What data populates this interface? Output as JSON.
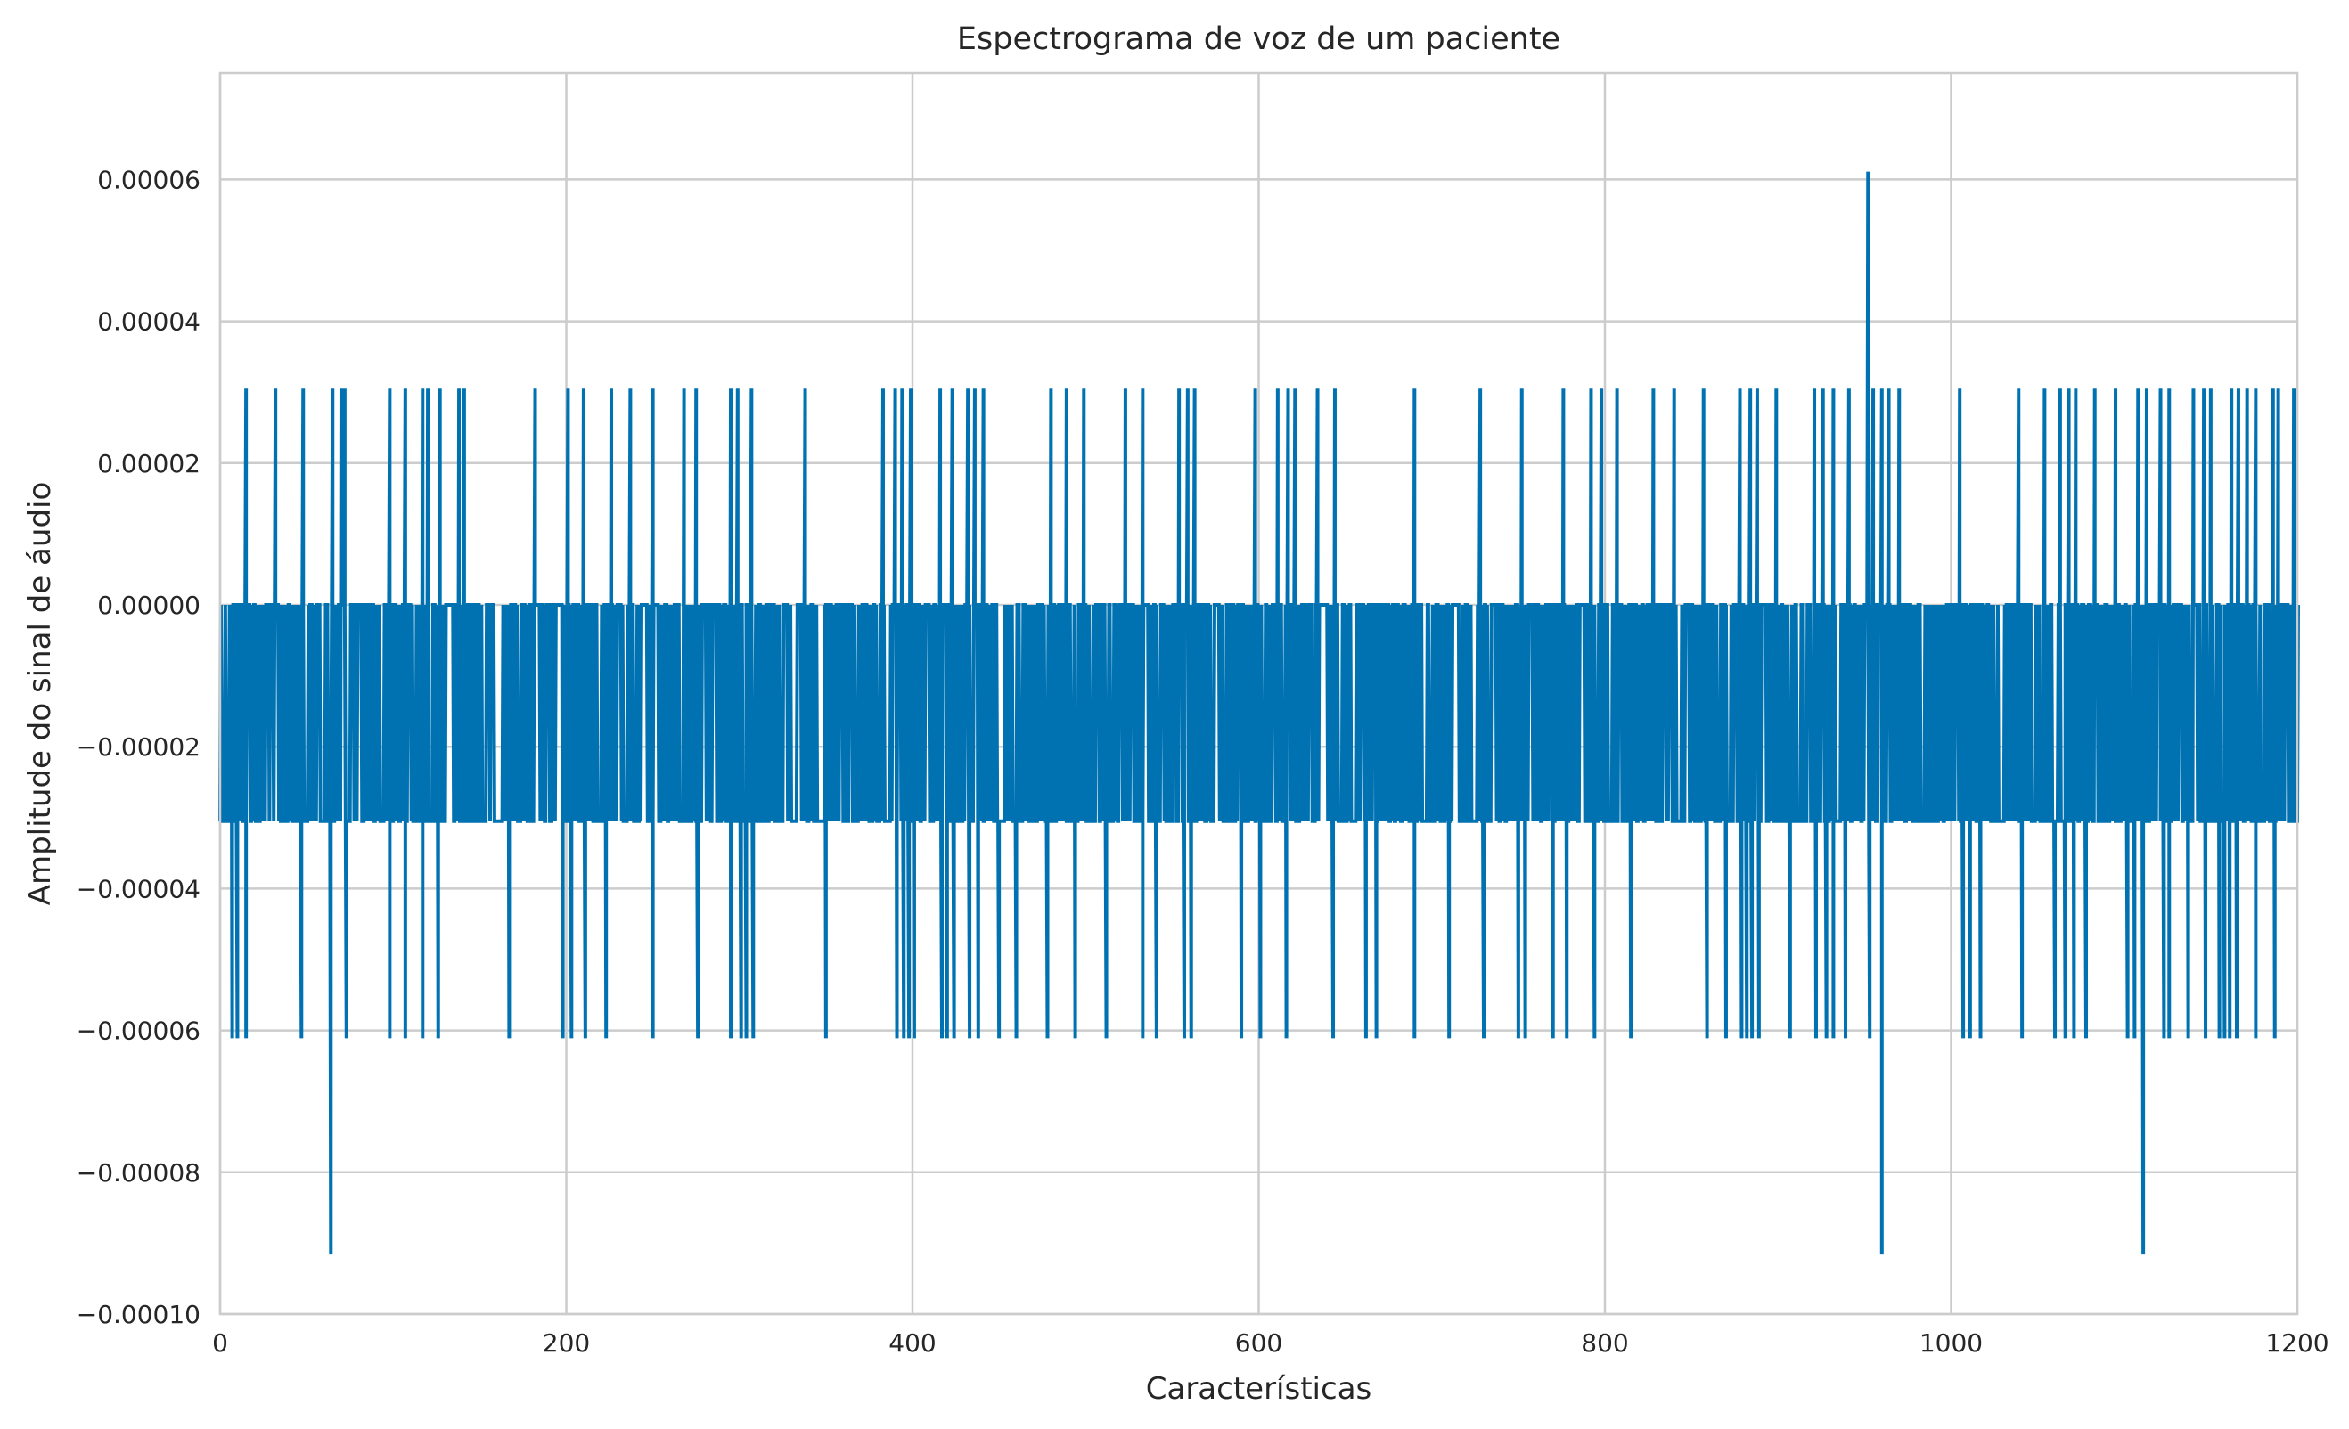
{
  "chart_data": {
    "type": "line",
    "title": "Espectrograma de voz de um paciente",
    "xlabel": "Características",
    "ylabel": "Amplitude do sinal de áudio",
    "xlim": [
      0,
      1200
    ],
    "ylim": [
      -0.0001,
      7.5e-05
    ],
    "x_ticks": [
      0,
      200,
      400,
      600,
      800,
      1000,
      1200
    ],
    "x_tick_labels": [
      "0",
      "200",
      "400",
      "600",
      "800",
      "1000",
      "1200"
    ],
    "y_ticks": [
      -0.0001,
      -8e-05,
      -6e-05,
      -4e-05,
      -2e-05,
      0.0,
      2e-05,
      4e-05,
      6e-05
    ],
    "y_tick_labels": [
      "−0.00010",
      "−0.00008",
      "−0.00006",
      "−0.00004",
      "−0.00002",
      "0.00000",
      "0.00002",
      "0.00004",
      "0.00006"
    ],
    "grid": true,
    "legend": "none",
    "line_color": "#0072b2",
    "grid_color": "#cccccc",
    "quantization_levels": [
      -9.16e-05,
      -6.11e-05,
      -3.05e-05,
      0.0,
      3.05e-05,
      6.11e-05
    ],
    "series": [
      {
        "x_start": 0,
        "x_end": 1200,
        "baseline_range": [
          -3.05e-05,
          0.0
        ],
        "positive_spikes": [
          {
            "x": 15,
            "y": 3.05e-05
          },
          {
            "x": 32,
            "y": 3.05e-05
          },
          {
            "x": 48,
            "y": 3.05e-05
          },
          {
            "x": 65,
            "y": 3.05e-05
          },
          {
            "x": 70,
            "y": 3.05e-05
          },
          {
            "x": 72,
            "y": 3.05e-05
          },
          {
            "x": 98,
            "y": 3.05e-05
          },
          {
            "x": 107,
            "y": 3.05e-05
          },
          {
            "x": 117,
            "y": 3.05e-05
          },
          {
            "x": 120,
            "y": 3.05e-05
          },
          {
            "x": 127,
            "y": 3.05e-05
          },
          {
            "x": 138,
            "y": 3.05e-05
          },
          {
            "x": 141,
            "y": 3.05e-05
          },
          {
            "x": 182,
            "y": 3.05e-05
          },
          {
            "x": 201,
            "y": 3.05e-05
          },
          {
            "x": 210,
            "y": 3.05e-05
          },
          {
            "x": 226,
            "y": 3.05e-05
          },
          {
            "x": 237,
            "y": 3.05e-05
          },
          {
            "x": 250,
            "y": 3.05e-05
          },
          {
            "x": 268,
            "y": 3.05e-05
          },
          {
            "x": 275,
            "y": 3.05e-05
          },
          {
            "x": 295,
            "y": 3.05e-05
          },
          {
            "x": 299,
            "y": 3.05e-05
          },
          {
            "x": 307,
            "y": 3.05e-05
          },
          {
            "x": 338,
            "y": 3.05e-05
          },
          {
            "x": 383,
            "y": 3.05e-05
          },
          {
            "x": 390,
            "y": 3.05e-05
          },
          {
            "x": 394,
            "y": 3.05e-05
          },
          {
            "x": 399,
            "y": 3.05e-05
          },
          {
            "x": 416,
            "y": 3.05e-05
          },
          {
            "x": 423,
            "y": 3.05e-05
          },
          {
            "x": 432,
            "y": 3.05e-05
          },
          {
            "x": 436,
            "y": 3.05e-05
          },
          {
            "x": 441,
            "y": 3.05e-05
          },
          {
            "x": 480,
            "y": 3.05e-05
          },
          {
            "x": 489,
            "y": 3.05e-05
          },
          {
            "x": 499,
            "y": 3.05e-05
          },
          {
            "x": 523,
            "y": 3.05e-05
          },
          {
            "x": 533,
            "y": 3.05e-05
          },
          {
            "x": 554,
            "y": 3.05e-05
          },
          {
            "x": 559,
            "y": 3.05e-05
          },
          {
            "x": 563,
            "y": 3.05e-05
          },
          {
            "x": 598,
            "y": 3.05e-05
          },
          {
            "x": 611,
            "y": 3.05e-05
          },
          {
            "x": 617,
            "y": 3.05e-05
          },
          {
            "x": 621,
            "y": 3.05e-05
          },
          {
            "x": 634,
            "y": 3.05e-05
          },
          {
            "x": 644,
            "y": 3.05e-05
          },
          {
            "x": 690,
            "y": 3.05e-05
          },
          {
            "x": 728,
            "y": 3.05e-05
          },
          {
            "x": 752,
            "y": 3.05e-05
          },
          {
            "x": 776,
            "y": 3.05e-05
          },
          {
            "x": 792,
            "y": 3.05e-05
          },
          {
            "x": 798,
            "y": 3.05e-05
          },
          {
            "x": 807,
            "y": 3.05e-05
          },
          {
            "x": 828,
            "y": 3.05e-05
          },
          {
            "x": 840,
            "y": 3.05e-05
          },
          {
            "x": 857,
            "y": 3.05e-05
          },
          {
            "x": 878,
            "y": 3.05e-05
          },
          {
            "x": 884,
            "y": 3.05e-05
          },
          {
            "x": 888,
            "y": 3.05e-05
          },
          {
            "x": 899,
            "y": 3.05e-05
          },
          {
            "x": 921,
            "y": 3.05e-05
          },
          {
            "x": 926,
            "y": 3.05e-05
          },
          {
            "x": 932,
            "y": 3.05e-05
          },
          {
            "x": 941,
            "y": 3.05e-05
          },
          {
            "x": 952,
            "y": 6.11e-05
          },
          {
            "x": 955,
            "y": 3.05e-05
          },
          {
            "x": 960,
            "y": 3.05e-05
          },
          {
            "x": 964,
            "y": 3.05e-05
          },
          {
            "x": 970,
            "y": 3.05e-05
          },
          {
            "x": 1005,
            "y": 3.05e-05
          },
          {
            "x": 1039,
            "y": 3.05e-05
          },
          {
            "x": 1054,
            "y": 3.05e-05
          },
          {
            "x": 1063,
            "y": 3.05e-05
          },
          {
            "x": 1068,
            "y": 3.05e-05
          },
          {
            "x": 1072,
            "y": 3.05e-05
          },
          {
            "x": 1083,
            "y": 3.05e-05
          },
          {
            "x": 1095,
            "y": 3.05e-05
          },
          {
            "x": 1108,
            "y": 3.05e-05
          },
          {
            "x": 1113,
            "y": 3.05e-05
          },
          {
            "x": 1121,
            "y": 3.05e-05
          },
          {
            "x": 1126,
            "y": 3.05e-05
          },
          {
            "x": 1140,
            "y": 3.05e-05
          },
          {
            "x": 1146,
            "y": 3.05e-05
          },
          {
            "x": 1150,
            "y": 3.05e-05
          },
          {
            "x": 1162,
            "y": 3.05e-05
          },
          {
            "x": 1166,
            "y": 3.05e-05
          },
          {
            "x": 1171,
            "y": 3.05e-05
          },
          {
            "x": 1176,
            "y": 3.05e-05
          },
          {
            "x": 1186,
            "y": 3.05e-05
          },
          {
            "x": 1189,
            "y": 3.05e-05
          },
          {
            "x": 1198,
            "y": 3.05e-05
          }
        ],
        "negative_spikes": [
          {
            "x": 7,
            "y": -6.11e-05
          },
          {
            "x": 10,
            "y": -6.11e-05
          },
          {
            "x": 15,
            "y": -6.11e-05
          },
          {
            "x": 47,
            "y": -6.11e-05
          },
          {
            "x": 64,
            "y": -9.16e-05
          },
          {
            "x": 73,
            "y": -6.11e-05
          },
          {
            "x": 98,
            "y": -6.11e-05
          },
          {
            "x": 107,
            "y": -6.11e-05
          },
          {
            "x": 117,
            "y": -6.11e-05
          },
          {
            "x": 126,
            "y": -6.11e-05
          },
          {
            "x": 167,
            "y": -6.11e-05
          },
          {
            "x": 198,
            "y": -6.11e-05
          },
          {
            "x": 203,
            "y": -6.11e-05
          },
          {
            "x": 211,
            "y": -6.11e-05
          },
          {
            "x": 223,
            "y": -6.11e-05
          },
          {
            "x": 250,
            "y": -6.11e-05
          },
          {
            "x": 276,
            "y": -6.11e-05
          },
          {
            "x": 295,
            "y": -6.11e-05
          },
          {
            "x": 301,
            "y": -6.11e-05
          },
          {
            "x": 304,
            "y": -6.11e-05
          },
          {
            "x": 308,
            "y": -6.11e-05
          },
          {
            "x": 350,
            "y": -6.11e-05
          },
          {
            "x": 391,
            "y": -6.11e-05
          },
          {
            "x": 395,
            "y": -6.11e-05
          },
          {
            "x": 398,
            "y": -6.11e-05
          },
          {
            "x": 401,
            "y": -6.11e-05
          },
          {
            "x": 417,
            "y": -6.11e-05
          },
          {
            "x": 420,
            "y": -6.11e-05
          },
          {
            "x": 424,
            "y": -6.11e-05
          },
          {
            "x": 433,
            "y": -6.11e-05
          },
          {
            "x": 438,
            "y": -6.11e-05
          },
          {
            "x": 450,
            "y": -6.11e-05
          },
          {
            "x": 460,
            "y": -6.11e-05
          },
          {
            "x": 478,
            "y": -6.11e-05
          },
          {
            "x": 494,
            "y": -6.11e-05
          },
          {
            "x": 512,
            "y": -6.11e-05
          },
          {
            "x": 533,
            "y": -6.11e-05
          },
          {
            "x": 541,
            "y": -6.11e-05
          },
          {
            "x": 557,
            "y": -6.11e-05
          },
          {
            "x": 561,
            "y": -6.11e-05
          },
          {
            "x": 590,
            "y": -6.11e-05
          },
          {
            "x": 601,
            "y": -6.11e-05
          },
          {
            "x": 616,
            "y": -6.11e-05
          },
          {
            "x": 643,
            "y": -6.11e-05
          },
          {
            "x": 662,
            "y": -6.11e-05
          },
          {
            "x": 668,
            "y": -6.11e-05
          },
          {
            "x": 690,
            "y": -6.11e-05
          },
          {
            "x": 710,
            "y": -6.11e-05
          },
          {
            "x": 730,
            "y": -6.11e-05
          },
          {
            "x": 750,
            "y": -6.11e-05
          },
          {
            "x": 754,
            "y": -6.11e-05
          },
          {
            "x": 770,
            "y": -6.11e-05
          },
          {
            "x": 778,
            "y": -6.11e-05
          },
          {
            "x": 794,
            "y": -6.11e-05
          },
          {
            "x": 815,
            "y": -6.11e-05
          },
          {
            "x": 859,
            "y": -6.11e-05
          },
          {
            "x": 870,
            "y": -6.11e-05
          },
          {
            "x": 879,
            "y": -6.11e-05
          },
          {
            "x": 882,
            "y": -6.11e-05
          },
          {
            "x": 885,
            "y": -6.11e-05
          },
          {
            "x": 889,
            "y": -6.11e-05
          },
          {
            "x": 907,
            "y": -6.11e-05
          },
          {
            "x": 922,
            "y": -6.11e-05
          },
          {
            "x": 928,
            "y": -6.11e-05
          },
          {
            "x": 932,
            "y": -6.11e-05
          },
          {
            "x": 939,
            "y": -6.11e-05
          },
          {
            "x": 953,
            "y": -6.11e-05
          },
          {
            "x": 960,
            "y": -9.16e-05
          },
          {
            "x": 1007,
            "y": -6.11e-05
          },
          {
            "x": 1011,
            "y": -6.11e-05
          },
          {
            "x": 1017,
            "y": -6.11e-05
          },
          {
            "x": 1041,
            "y": -6.11e-05
          },
          {
            "x": 1060,
            "y": -6.11e-05
          },
          {
            "x": 1066,
            "y": -6.11e-05
          },
          {
            "x": 1071,
            "y": -6.11e-05
          },
          {
            "x": 1078,
            "y": -6.11e-05
          },
          {
            "x": 1102,
            "y": -6.11e-05
          },
          {
            "x": 1106,
            "y": -6.11e-05
          },
          {
            "x": 1111,
            "y": -9.16e-05
          },
          {
            "x": 1123,
            "y": -6.11e-05
          },
          {
            "x": 1126,
            "y": -6.11e-05
          },
          {
            "x": 1137,
            "y": -6.11e-05
          },
          {
            "x": 1147,
            "y": -6.11e-05
          },
          {
            "x": 1155,
            "y": -6.11e-05
          },
          {
            "x": 1158,
            "y": -6.11e-05
          },
          {
            "x": 1161,
            "y": -6.11e-05
          },
          {
            "x": 1165,
            "y": -6.11e-05
          },
          {
            "x": 1176,
            "y": -6.11e-05
          },
          {
            "x": 1187,
            "y": -6.11e-05
          }
        ]
      }
    ]
  }
}
